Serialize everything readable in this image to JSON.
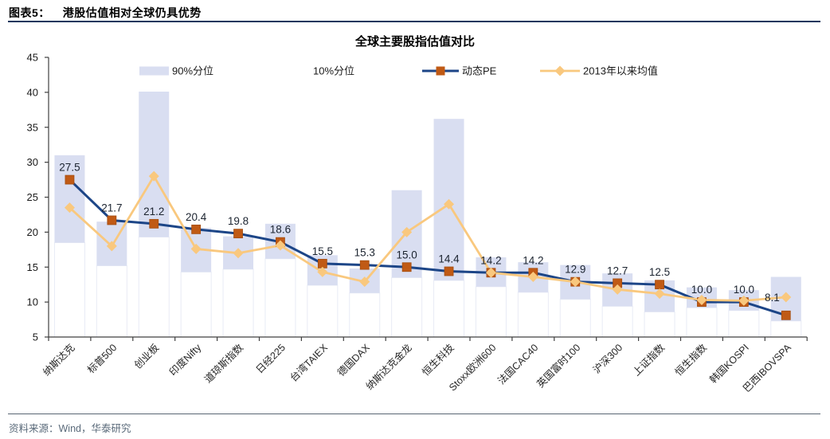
{
  "header": {
    "figure_label": "图表5：",
    "figure_title": "港股估值相对全球仍具优势"
  },
  "footer": {
    "source": "资料来源：Wind，华泰研究"
  },
  "colors": {
    "bar_fill": "#d9def1",
    "bar_base_fill": "#ffffff",
    "bar_base_edge": "#e8ebf5",
    "pe_line": "#1c4587",
    "pe_marker": "#c05a15",
    "mean_line": "#f9c87e",
    "axis": "#404040",
    "tick_text": "#1a1a1a",
    "label_text": "#1c2430",
    "header_rule": "#17375e",
    "footer_rule": "#5a6673",
    "footer_text": "#5a6a7a"
  },
  "chart_data": {
    "type": "combo: floating percentile range bars (10%-90%) + two line series with markers",
    "title": "全球主要股指估值对比",
    "categories": [
      "纳斯达克",
      "标普500",
      "创业板",
      "印度Nifty",
      "道琼斯指数",
      "日经225",
      "台湾TAIEX",
      "德国DAX",
      "纳斯达克金龙",
      "恒生科技",
      "Stoxx欧洲600",
      "法国CAC40",
      "英国富时100",
      "沪深300",
      "上证指数",
      "恒生指数",
      "韩国KOSPI",
      "巴西IBOVSPA"
    ],
    "series": [
      {
        "name": "90%分位",
        "type": "range_bar_high",
        "color": "#d9def1",
        "values": [
          31.0,
          21.5,
          40.1,
          20.6,
          19.4,
          21.2,
          16.7,
          14.8,
          26.0,
          36.2,
          16.4,
          15.7,
          15.3,
          14.1,
          13.1,
          12.1,
          11.7,
          13.6
        ]
      },
      {
        "name": "10%分位",
        "type": "range_bar_low",
        "color": "#ffffff",
        "values": [
          18.5,
          15.2,
          19.3,
          14.3,
          14.7,
          16.2,
          12.4,
          11.3,
          13.5,
          13.1,
          12.2,
          11.4,
          10.4,
          9.4,
          8.6,
          9.2,
          8.8,
          7.3
        ]
      },
      {
        "name": "动态PE",
        "type": "line",
        "color": "#1c4587",
        "marker": "square",
        "marker_color": "#c05a15",
        "data_labels": true,
        "values": [
          27.5,
          21.7,
          21.2,
          20.4,
          19.8,
          18.6,
          15.5,
          15.3,
          15.0,
          14.4,
          14.2,
          14.2,
          12.9,
          12.7,
          12.5,
          10.0,
          10.0,
          8.1
        ]
      },
      {
        "name": "2013年以来均值",
        "type": "line",
        "color": "#f9c87e",
        "marker": "diamond",
        "values": [
          23.5,
          18.0,
          28.0,
          17.6,
          17.0,
          18.1,
          14.3,
          12.9,
          20.0,
          24.0,
          14.2,
          13.6,
          12.9,
          11.8,
          11.2,
          10.3,
          10.2,
          10.7
        ]
      }
    ],
    "ylim": [
      5,
      45
    ],
    "ytick_step": 5,
    "yticks": [
      5,
      10,
      15,
      20,
      25,
      30,
      35,
      40,
      45
    ],
    "grid": false,
    "legend_position": "top"
  }
}
